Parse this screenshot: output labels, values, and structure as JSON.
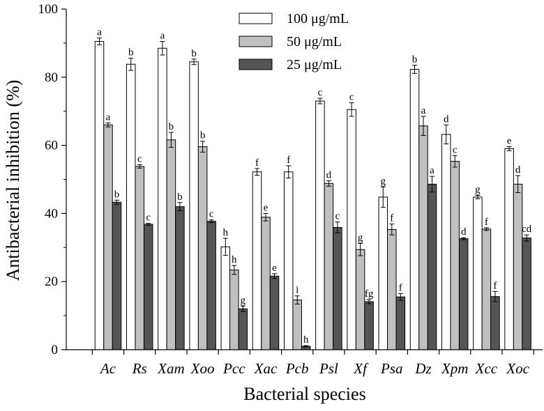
{
  "chart_data": {
    "type": "bar",
    "title": "",
    "xlabel": "Bacterial species",
    "ylabel": "Antibacterial inhibition (%)",
    "ylim": [
      0,
      100
    ],
    "yticks": [
      0,
      20,
      40,
      60,
      80,
      100
    ],
    "legend_position": "top-center",
    "categories": [
      "Ac",
      "Rs",
      "Xam",
      "Xoo",
      "Pcc",
      "Xac",
      "Pcb",
      "Psl",
      "Xf",
      "Psa",
      "Dz",
      "Xpm",
      "Xcc",
      "Xoc"
    ],
    "series": [
      {
        "name": "100 μg/mL",
        "color": "#ffffff",
        "values": [
          90.5,
          83.8,
          88.5,
          84.5,
          30.2,
          52.2,
          52.2,
          73.0,
          70.5,
          44.8,
          82.3,
          63.2,
          44.8,
          59.0
        ],
        "errors": [
          1.0,
          1.8,
          2.0,
          0.8,
          2.5,
          1.0,
          1.8,
          0.8,
          2.0,
          3.0,
          1.2,
          2.8,
          0.5,
          0.6
        ],
        "labels": [
          "a",
          "b",
          "a",
          "b",
          "h",
          "f",
          "f",
          "c",
          "c",
          "g",
          "b",
          "d",
          "g",
          "e"
        ]
      },
      {
        "name": "50 μg/mL",
        "color": "#c0c0c0",
        "values": [
          66.0,
          53.8,
          61.6,
          59.6,
          23.4,
          38.9,
          14.6,
          48.8,
          29.4,
          35.3,
          65.7,
          55.3,
          35.4,
          48.6
        ],
        "errors": [
          0.6,
          0.5,
          2.2,
          1.6,
          1.3,
          1.1,
          1.2,
          0.8,
          1.8,
          1.6,
          2.8,
          1.7,
          0.4,
          2.5
        ],
        "labels": [
          "a",
          "c",
          "b",
          "b",
          "h",
          "e",
          "i",
          "d",
          "g",
          "f",
          "a",
          "c",
          "f",
          "d"
        ]
      },
      {
        "name": "25 μg/mL",
        "color": "#555555",
        "values": [
          43.3,
          36.8,
          42.0,
          37.7,
          12.0,
          21.6,
          1.0,
          35.9,
          14.1,
          15.5,
          48.6,
          32.6,
          15.6,
          32.8
        ],
        "errors": [
          0.6,
          0.3,
          1.2,
          0.4,
          0.8,
          0.7,
          0.2,
          1.6,
          0.6,
          1.0,
          2.3,
          0.3,
          1.5,
          0.9
        ],
        "labels": [
          "b",
          "c",
          "b",
          "c",
          "g",
          "e",
          "h",
          "c",
          "fg",
          "f",
          "a",
          "d",
          "f",
          "cd"
        ]
      }
    ]
  }
}
